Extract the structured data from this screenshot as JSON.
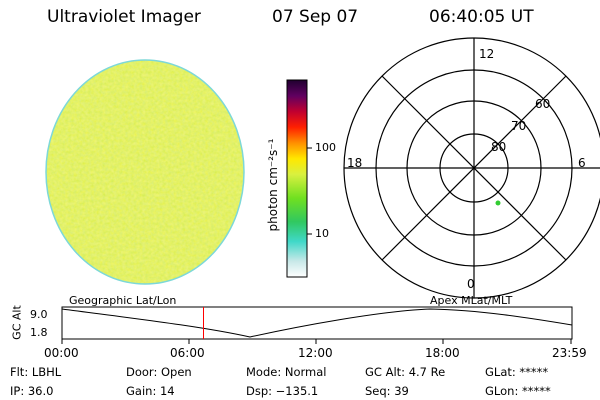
{
  "header": {
    "title": "Ultraviolet Imager",
    "date": "07 Sep 07",
    "time": "06:40:05 UT"
  },
  "colorbar": {
    "label": "photon cm⁻²s⁻¹",
    "ticks": [
      "100",
      "10"
    ]
  },
  "polar": {
    "mlt_labels": {
      "top": "12",
      "left": "18",
      "right": "6",
      "bottom": "0"
    },
    "lat_labels": [
      "60",
      "70",
      "80"
    ]
  },
  "timeline": {
    "left_caption": "Geographic Lat/Lon",
    "right_caption": "Apex MLat/MLT",
    "axis_title": "GC Alt",
    "y_ticks": [
      "9.0",
      "1.8"
    ],
    "x_ticks": [
      "00:00",
      "06:00",
      "12:00",
      "18:00",
      "23:59"
    ],
    "current_time_fraction": 0.278
  },
  "footer": {
    "col1": [
      "Flt: LBHL",
      "IP: 36.0"
    ],
    "col2": [
      "Door: Open",
      "Gain: 14"
    ],
    "col3": [
      "Mode: Normal",
      "Dsp: −135.1"
    ],
    "col4": [
      "GC Alt: 4.7 Re",
      "Seq: 39"
    ],
    "col5": [
      "GLat: *****",
      "GLon: *****"
    ]
  },
  "colors": {
    "disk_base": "#d8f040",
    "red_marker": "#ff0000",
    "green_dot": "#33cc33"
  }
}
